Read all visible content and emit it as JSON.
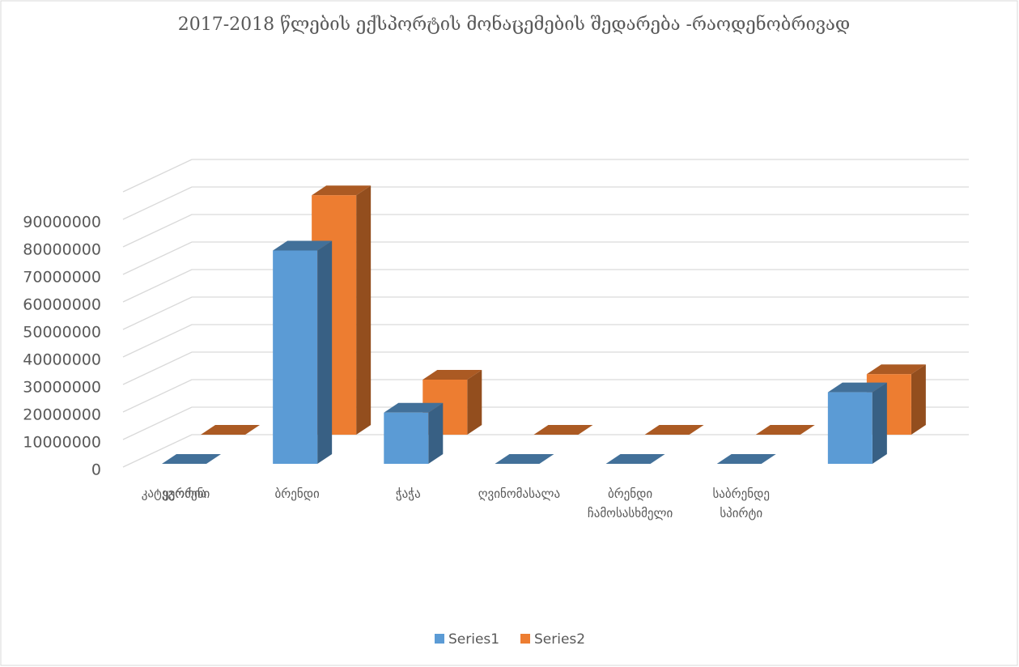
{
  "chart_data": {
    "type": "bar3d",
    "title": "2017-2018 წლების  ექსპორტის მონაცემების  შედარება -რაოდენობრივად",
    "x_label": "კატეგორია",
    "categories": [
      "ყურძენი",
      "ბრენდი",
      "ჭაჭა",
      "ღვინომასალა",
      "ბრენდი ჩამოსასხმელი",
      "საბრენდე სპირტი",
      null
    ],
    "series": [
      {
        "name": "Series1",
        "color": "#5b9bd5",
        "values": [
          0,
          77500000,
          18600000,
          0,
          0,
          0,
          26000000
        ]
      },
      {
        "name": "Series2",
        "color": "#ed7d31",
        "values": [
          0,
          87000000,
          20000000,
          0,
          0,
          0,
          22000000
        ]
      }
    ],
    "ylim": [
      0,
      100000000
    ],
    "yticks": [
      0,
      10000000,
      20000000,
      30000000,
      40000000,
      50000000,
      60000000,
      70000000,
      80000000,
      90000000
    ],
    "grid": true,
    "legend": "bottom"
  }
}
